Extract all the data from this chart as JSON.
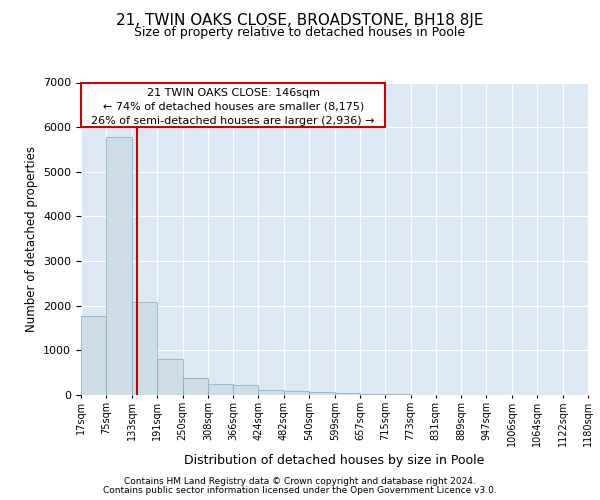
{
  "title_line1": "21, TWIN OAKS CLOSE, BROADSTONE, BH18 8JE",
  "title_line2": "Size of property relative to detached houses in Poole",
  "xlabel": "Distribution of detached houses by size in Poole",
  "ylabel": "Number of detached properties",
  "footer_line1": "Contains HM Land Registry data © Crown copyright and database right 2024.",
  "footer_line2": "Contains public sector information licensed under the Open Government Licence v3.0.",
  "annotation_line1": "21 TWIN OAKS CLOSE: 146sqm",
  "annotation_line2": "← 74% of detached houses are smaller (8,175)",
  "annotation_line3": "26% of semi-detached houses are larger (2,936) →",
  "property_size": 146,
  "bin_edges": [
    17,
    75,
    133,
    191,
    250,
    308,
    366,
    424,
    482,
    540,
    599,
    657,
    715,
    773,
    831,
    889,
    947,
    1006,
    1064,
    1122,
    1180
  ],
  "bar_heights": [
    1780,
    5780,
    2080,
    800,
    380,
    250,
    220,
    120,
    100,
    70,
    50,
    30,
    15,
    10,
    5,
    3,
    2,
    2,
    1,
    1
  ],
  "bar_color": "#ccdde8",
  "bar_edge_color": "#7aaac8",
  "red_line_color": "#cc0000",
  "box_edge_color": "#cc0000",
  "bg_color": "#dce8f4",
  "ylim": [
    0,
    7000
  ],
  "yticks": [
    0,
    1000,
    2000,
    3000,
    4000,
    5000,
    6000,
    7000
  ]
}
